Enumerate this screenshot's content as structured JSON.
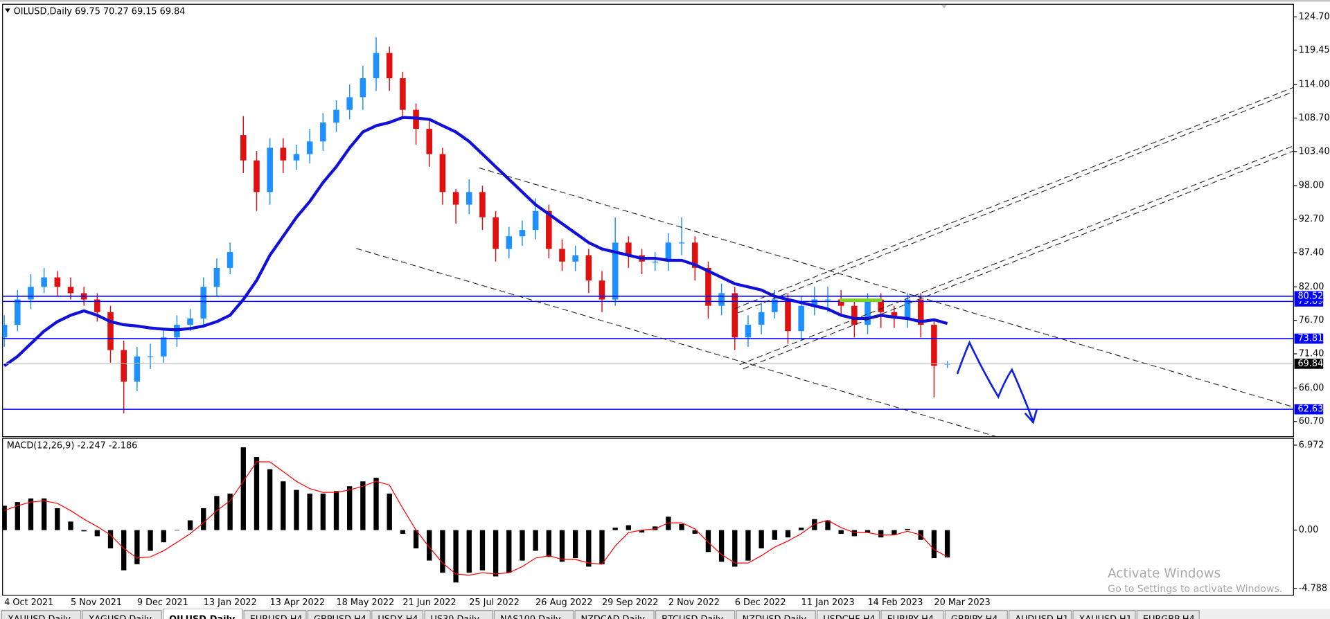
{
  "chart_data": [
    {
      "type": "candlestick",
      "title": "OILUSD,Daily  69.75 70.27 69.15 69.84",
      "categories": [
        "4 Oct 2021",
        null,
        null,
        null,
        null,
        "5 Nov 2021",
        null,
        null,
        null,
        null,
        "9 Dec 2021",
        null,
        null,
        null,
        null,
        "13 Jan 2022",
        null,
        null,
        null,
        null,
        "13 Apr 2022",
        null,
        null,
        null,
        null,
        "18 May 2022",
        null,
        null,
        null,
        null,
        "21 Jun 2022",
        null,
        null,
        null,
        null,
        "25 Jul 2022",
        null,
        null,
        null,
        null,
        "26 Aug 2022",
        null,
        null,
        null,
        null,
        "29 Sep 2022",
        null,
        null,
        null,
        null,
        "2 Nov 2022",
        null,
        null,
        null,
        null,
        "6 Dec 2022",
        null,
        null,
        null,
        null,
        "11 Jan 2023",
        null,
        null,
        null,
        null,
        "14 Feb 2023",
        null,
        null,
        null,
        null,
        "20 Mar 2023",
        null
      ],
      "open": [
        74,
        76,
        80,
        82,
        83.5,
        82,
        81,
        80,
        78,
        72,
        67,
        71,
        71,
        74,
        76,
        77,
        82,
        85,
        106,
        102,
        97,
        104,
        102,
        103,
        105,
        108,
        110,
        112,
        115,
        119,
        115,
        110,
        107,
        103,
        97,
        95,
        97,
        93,
        88,
        90,
        91,
        94,
        88,
        86,
        87,
        83,
        80,
        89,
        87,
        86,
        86,
        89,
        89,
        85,
        79,
        81,
        74,
        76,
        78,
        80,
        75,
        79,
        80,
        80,
        79,
        76,
        80,
        78,
        77,
        80,
        76,
        69.75
      ],
      "high": [
        77.5,
        81.5,
        84,
        85,
        84.5,
        83.5,
        82,
        81,
        79,
        73.5,
        72.5,
        73,
        75.5,
        77.5,
        78.5,
        83.5,
        86.5,
        89,
        109,
        103.5,
        105.5,
        105.5,
        104.5,
        107,
        109.5,
        111.5,
        114,
        117,
        121.5,
        120,
        116,
        111,
        108.5,
        104,
        97.5,
        99,
        98,
        94,
        91.5,
        92.5,
        96,
        95,
        89.5,
        88.5,
        88,
        84.5,
        93,
        90,
        88,
        87.5,
        90.5,
        93,
        90,
        86,
        82.5,
        82,
        77.5,
        79.5,
        81.5,
        81,
        80.5,
        82,
        82,
        81.5,
        80,
        81,
        81,
        79,
        81,
        81,
        77,
        70.27
      ],
      "low": [
        72.5,
        75,
        78.5,
        81,
        80.5,
        80,
        79,
        76.5,
        70,
        62,
        65.5,
        69,
        70,
        72.5,
        75,
        75.5,
        80.5,
        84,
        100,
        94,
        95,
        100,
        100.5,
        101.5,
        103.5,
        106.5,
        108.5,
        110,
        113,
        113,
        108.5,
        104.5,
        101,
        95,
        92,
        93.5,
        91,
        86,
        86.5,
        88.5,
        89.5,
        86.5,
        84.5,
        84.5,
        81,
        78,
        79,
        85,
        84,
        84.5,
        84.5,
        87,
        83,
        77,
        77.5,
        72,
        72.5,
        74.5,
        77,
        73,
        73.5,
        77.5,
        78,
        77.5,
        74,
        74.5,
        75.5,
        75.5,
        75.5,
        74,
        64.5,
        69.15
      ],
      "close": [
        76,
        80,
        82,
        83.5,
        82,
        81,
        80,
        78,
        72,
        67,
        71,
        71,
        74,
        76,
        77,
        82,
        85,
        87.5,
        102,
        97,
        104,
        102,
        103,
        105,
        108,
        110,
        112,
        115,
        119,
        115,
        110,
        107,
        103,
        97,
        95,
        97,
        93,
        88,
        90,
        91,
        94,
        88,
        86,
        87,
        83,
        80,
        89,
        87,
        86,
        86,
        89,
        89,
        85,
        79,
        81,
        74,
        76,
        78,
        80,
        75,
        79,
        80,
        80,
        79,
        76,
        80,
        78,
        77,
        80,
        76,
        69.5,
        69.84
      ],
      "up_color": "#1e90ff",
      "down_color": "#e01010",
      "ma": {
        "color": "#1010d8",
        "values": [
          69.5,
          71,
          73,
          75,
          76.5,
          77.5,
          78.2,
          77.5,
          76.5,
          76,
          75.8,
          75.5,
          75.3,
          75.2,
          75.4,
          75.8,
          76.5,
          77.5,
          80,
          83,
          87,
          90,
          93,
          95.5,
          98.5,
          101,
          104,
          106.5,
          107.5,
          108,
          108.8,
          108.7,
          108.5,
          107.5,
          106.5,
          105,
          103,
          101,
          99,
          97,
          95,
          93.5,
          92,
          90.5,
          89,
          88,
          87.5,
          87,
          86.5,
          86.5,
          86.2,
          86.2,
          85.5,
          84.5,
          83.5,
          82.5,
          82,
          81.5,
          80.5,
          80,
          79.5,
          79,
          78.5,
          77.5,
          77,
          77,
          77.5,
          77.2,
          77,
          76.5,
          76.8,
          76.2
        ]
      },
      "ylim": [
        58.3,
        126.7
      ],
      "yticks": [
        {
          "value": 124.7,
          "label": "124.70"
        },
        119.45,
        {
          "value": 114,
          "label": "114.00"
        },
        {
          "value": 108.7,
          "label": "108.70"
        },
        {
          "value": 103.4,
          "label": "103.40"
        },
        {
          "value": 98,
          "label": "98.00"
        },
        {
          "value": 92.7,
          "label": "92.70"
        },
        {
          "value": 87.4,
          "label": "87.40"
        },
        {
          "value": 82,
          "label": "82.00"
        },
        {
          "value": 76.7,
          "label": "76.70"
        },
        {
          "value": 71.4,
          "label": "71.40"
        },
        {
          "value": 66,
          "label": "66.00"
        },
        {
          "value": 60.7,
          "label": "60.70"
        }
      ],
      "price_lines": {
        "color": "#0000ff",
        "values": [
          80.52,
          79.69,
          73.81,
          62.63
        ]
      },
      "current_price": 69.84
    },
    {
      "type": "bar",
      "title": "MACD(12,26,9) -2.247 -2.186",
      "values": [
        2.0,
        2.3,
        2.6,
        2.6,
        1.8,
        0.7,
        -0.1,
        -0.5,
        -1.5,
        -3.3,
        -2.8,
        -1.7,
        -1.0,
        0.0,
        0.8,
        1.8,
        2.8,
        3.0,
        6.8,
        6.0,
        5.0,
        4.0,
        3.3,
        3.0,
        3.0,
        3.2,
        3.6,
        4.0,
        4.3,
        3.0,
        -0.3,
        -1.5,
        -2.5,
        -3.5,
        -4.3,
        -3.5,
        -3.3,
        -3.8,
        -3.5,
        -2.5,
        -1.7,
        -2.2,
        -2.6,
        -2.3,
        -3.0,
        -2.8,
        0.2,
        0.4,
        -0.2,
        0.3,
        1.1,
        0.5,
        -0.3,
        -1.8,
        -2.6,
        -3.0,
        -2.5,
        -1.5,
        -0.8,
        -0.6,
        0.2,
        0.9,
        0.8,
        -0.3,
        -0.5,
        -0.2,
        -0.6,
        -0.4,
        0.1,
        -0.8,
        -2.3,
        -2.247
      ],
      "color": "#000000",
      "signal": {
        "color": "#ff0000",
        "values": [
          1.6,
          2.0,
          2.3,
          2.4,
          2.2,
          1.6,
          0.9,
          0.3,
          -0.4,
          -1.5,
          -2.3,
          -2.2,
          -1.7,
          -1.0,
          -0.3,
          0.6,
          1.6,
          2.4,
          4.0,
          5.6,
          5.6,
          4.8,
          4.0,
          3.4,
          3.1,
          3.1,
          3.3,
          3.6,
          4.0,
          3.7,
          1.8,
          0.0,
          -1.4,
          -2.7,
          -3.6,
          -3.7,
          -3.5,
          -3.6,
          -3.5,
          -3.0,
          -2.3,
          -2.1,
          -2.4,
          -2.4,
          -2.7,
          -2.8,
          -1.3,
          -0.2,
          0.0,
          0.1,
          0.6,
          0.6,
          0.1,
          -1.0,
          -2.0,
          -2.7,
          -2.7,
          -2.1,
          -1.4,
          -0.9,
          -0.3,
          0.5,
          0.8,
          0.2,
          -0.2,
          -0.2,
          -0.4,
          -0.4,
          -0.1,
          -0.4,
          -1.6,
          -2.186
        ]
      },
      "ylim": [
        -5.345,
        7.53
      ],
      "yticks": [
        6.972,
        {
          "value": 0,
          "label": "0.00"
        },
        -4.788
      ]
    }
  ],
  "tabs": {
    "active": 2,
    "labels": [
      "XAUUSD,Daily",
      "XAGUSD,Daily",
      "OILUSD,Daily",
      "EURUSD,H4",
      "GBPUSD,H4",
      "USDX,H4",
      "US30,Daily",
      "NAS100,Daily",
      "NZDCAD,Daily",
      "BTCUSD,Daily",
      "NZDUSD,Daily",
      "USDCHF,H4",
      "EURJPY,H4",
      "GBPJPY,H4",
      "AUDUSD,H1",
      "XAUUSD,H1",
      "EURGBP,H4"
    ]
  },
  "watermark": {
    "title": "Activate Windows",
    "subtitle": "Go to Settings to activate Windows."
  }
}
